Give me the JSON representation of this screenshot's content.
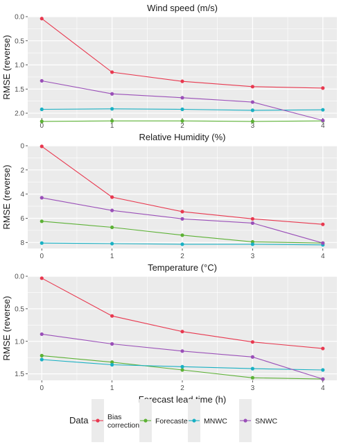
{
  "colors": {
    "Bias correction": "#e8384f",
    "Forecaster": "#5cb135",
    "MNWC": "#18b0c3",
    "SNWC": "#9a4fb8",
    "panel_bg": "#ebebeb",
    "grid": "#ffffff"
  },
  "legend": {
    "title": "Data",
    "items": [
      {
        "name": "Bias correction",
        "lines": [
          "Bias",
          "correction"
        ]
      },
      {
        "name": "Forecaster",
        "lines": [
          "Forecaster"
        ]
      },
      {
        "name": "MNWC",
        "lines": [
          "MNWC"
        ]
      },
      {
        "name": "SNWC",
        "lines": [
          "SNWC"
        ]
      }
    ]
  },
  "chart_data": [
    {
      "type": "line",
      "title": "Wind speed (m/s)",
      "ylabel": "RMSE (reverse)",
      "xlabel": "",
      "y_reversed": true,
      "x": [
        0,
        1,
        2,
        3,
        4
      ],
      "ylim": [
        0.0,
        2.1
      ],
      "yticks": [
        0.0,
        0.5,
        1.0,
        1.5,
        2.0
      ],
      "ytick_labels": [
        "0.0",
        "0.5",
        "1.0",
        "1.5",
        "2.0"
      ],
      "grid": true,
      "series": [
        {
          "name": "Bias correction",
          "values": [
            0.04,
            1.15,
            1.34,
            1.45,
            1.48
          ]
        },
        {
          "name": "Forecaster",
          "values": [
            2.17,
            2.16,
            2.16,
            2.17,
            2.16
          ]
        },
        {
          "name": "MNWC",
          "values": [
            1.92,
            1.91,
            1.92,
            1.94,
            1.93
          ]
        },
        {
          "name": "SNWC",
          "values": [
            1.33,
            1.6,
            1.68,
            1.77,
            2.15
          ]
        }
      ]
    },
    {
      "type": "line",
      "title": "Relative Humidity (%)",
      "ylabel": "RMSE (reverse)",
      "xlabel": "",
      "y_reversed": true,
      "x": [
        0,
        1,
        2,
        3,
        4
      ],
      "ylim": [
        0,
        8.5
      ],
      "yticks": [
        0,
        2,
        4,
        6,
        8
      ],
      "ytick_labels": [
        "0",
        "2",
        "4",
        "6",
        "8"
      ],
      "grid": true,
      "series": [
        {
          "name": "Bias correction",
          "values": [
            0.05,
            4.25,
            5.45,
            6.05,
            6.5
          ]
        },
        {
          "name": "Forecaster",
          "values": [
            6.25,
            6.75,
            7.4,
            7.95,
            8.05
          ]
        },
        {
          "name": "MNWC",
          "values": [
            8.05,
            8.1,
            8.15,
            8.15,
            8.2
          ]
        },
        {
          "name": "SNWC",
          "values": [
            4.3,
            5.35,
            6.05,
            6.4,
            8.05
          ]
        }
      ]
    },
    {
      "type": "line",
      "title": "Temperature (°C)",
      "ylabel": "RMSE (reverse)",
      "xlabel": "Forecast lead time (h)",
      "y_reversed": true,
      "x": [
        0,
        1,
        2,
        3,
        4
      ],
      "ylim": [
        0.0,
        1.6
      ],
      "yticks": [
        0.0,
        0.5,
        1.0,
        1.5
      ],
      "ytick_labels": [
        "0.0",
        "0.5",
        "1.0",
        "1.5"
      ],
      "xtick_labels": [
        "0",
        "1",
        "2",
        "3",
        "4"
      ],
      "grid": true,
      "series": [
        {
          "name": "Bias correction",
          "values": [
            0.03,
            0.61,
            0.85,
            1.01,
            1.11
          ]
        },
        {
          "name": "Forecaster",
          "values": [
            1.22,
            1.32,
            1.44,
            1.56,
            1.58
          ]
        },
        {
          "name": "MNWC",
          "values": [
            1.28,
            1.36,
            1.39,
            1.42,
            1.44
          ]
        },
        {
          "name": "SNWC",
          "values": [
            0.89,
            1.04,
            1.15,
            1.24,
            1.58
          ]
        }
      ]
    }
  ]
}
